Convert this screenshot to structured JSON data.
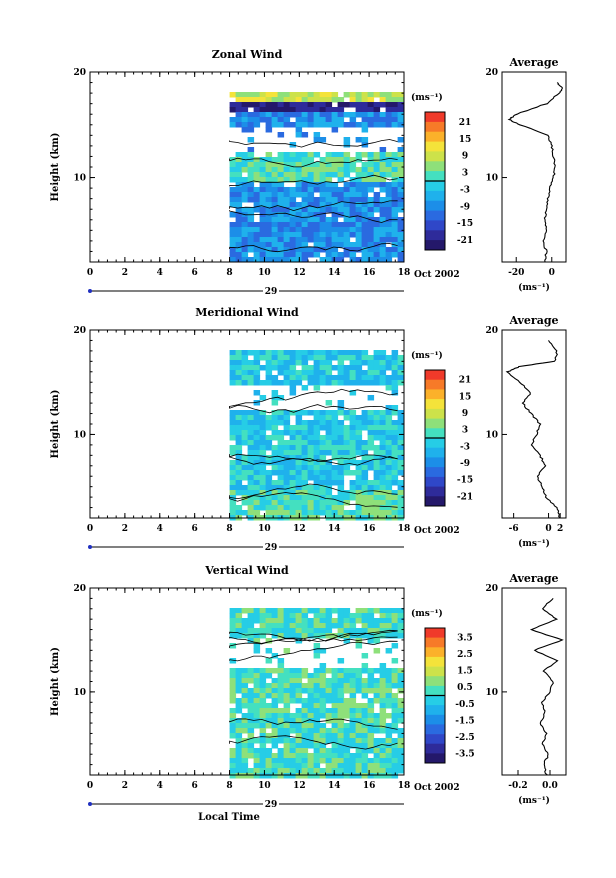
{
  "chart_data": [
    {
      "type": "heatmap",
      "title": "Zonal Wind",
      "xlabel": "",
      "ylabel": "Height (km)",
      "xlim": [
        0,
        18
      ],
      "ylim": [
        2,
        20
      ],
      "x_ticks": [
        0,
        2,
        4,
        6,
        8,
        10,
        12,
        14,
        16,
        18
      ],
      "y_ticks": [
        10,
        20
      ],
      "date_label": "29",
      "date_right": "Oct 2002",
      "data_start_time": 8,
      "colorbar": {
        "unit": "(ms⁻¹)",
        "ticks": [
          "21",
          "15",
          "9",
          "3",
          "-3",
          "-9",
          "-15",
          "-21"
        ],
        "range": [
          -24,
          24
        ]
      },
      "average": {
        "title": "Average",
        "xlabel": "(ms⁻¹)",
        "x_ticks": [
          "-20",
          "0"
        ],
        "xlim": [
          -28,
          8
        ],
        "y_ticks": [
          10,
          20
        ],
        "profile": [
          [
            2,
            -4
          ],
          [
            3,
            -3
          ],
          [
            4,
            -5
          ],
          [
            5,
            -3
          ],
          [
            6,
            -4
          ],
          [
            7,
            -3
          ],
          [
            8,
            -2
          ],
          [
            9,
            -1
          ],
          [
            10,
            1
          ],
          [
            11,
            2
          ],
          [
            12,
            1
          ],
          [
            13,
            0
          ],
          [
            14,
            -2
          ],
          [
            15,
            -18
          ],
          [
            15.5,
            -24
          ],
          [
            16,
            -20
          ],
          [
            17,
            -3
          ],
          [
            18,
            4
          ],
          [
            18.5,
            6
          ],
          [
            19,
            3
          ]
        ]
      }
    },
    {
      "type": "heatmap",
      "title": "Meridional Wind",
      "xlabel": "",
      "ylabel": "Height (km)",
      "xlim": [
        0,
        18
      ],
      "ylim": [
        2,
        20
      ],
      "x_ticks": [
        0,
        2,
        4,
        6,
        8,
        10,
        12,
        14,
        16,
        18
      ],
      "y_ticks": [
        10,
        20
      ],
      "date_label": "29",
      "date_right": "Oct 2002",
      "data_start_time": 8,
      "colorbar": {
        "unit": "(ms⁻¹)",
        "ticks": [
          "21",
          "15",
          "9",
          "3",
          "-3",
          "-9",
          "-15",
          "-21"
        ],
        "range": [
          -24,
          24
        ]
      },
      "average": {
        "title": "Average",
        "xlabel": "(ms⁻¹)",
        "x_ticks": [
          "-6",
          "0",
          "2"
        ],
        "xlim": [
          -8,
          3
        ],
        "y_ticks": [
          10,
          20
        ],
        "profile": [
          [
            2,
            2
          ],
          [
            3,
            1.5
          ],
          [
            4,
            -0.5
          ],
          [
            5,
            -1
          ],
          [
            6,
            -2
          ],
          [
            7,
            -0.5
          ],
          [
            8,
            -1.5
          ],
          [
            9,
            -3
          ],
          [
            10,
            -2
          ],
          [
            11,
            -1.5
          ],
          [
            12,
            -3
          ],
          [
            13,
            -4.5
          ],
          [
            14,
            -3
          ],
          [
            15,
            -5
          ],
          [
            16,
            -7
          ],
          [
            16.5,
            -5
          ],
          [
            17,
            1
          ],
          [
            18,
            1.5
          ],
          [
            19,
            0
          ]
        ]
      }
    },
    {
      "type": "heatmap",
      "title": "Vertical Wind",
      "xlabel": "Local Time",
      "ylabel": "Height (km)",
      "xlim": [
        0,
        18
      ],
      "ylim": [
        2,
        20
      ],
      "x_ticks": [
        0,
        2,
        4,
        6,
        8,
        10,
        12,
        14,
        16,
        18
      ],
      "y_ticks": [
        10,
        20
      ],
      "date_label": "29",
      "date_right": "Oct 2002",
      "data_start_time": 8,
      "colorbar": {
        "unit": "(ms⁻¹)",
        "ticks": [
          "3.5",
          "2.5",
          "1.5",
          "0.5",
          "-0.5",
          "-1.5",
          "-2.5",
          "-3.5"
        ],
        "range": [
          -4,
          4
        ]
      },
      "average": {
        "title": "Average",
        "xlabel": "(ms⁻¹)",
        "x_ticks": [
          "-0.2",
          "0.0"
        ],
        "xlim": [
          -0.3,
          0.1
        ],
        "y_ticks": [
          10,
          20
        ],
        "profile": [
          [
            2,
            -0.02
          ],
          [
            3,
            -0.04
          ],
          [
            4,
            -0.01
          ],
          [
            5,
            -0.05
          ],
          [
            6,
            -0.02
          ],
          [
            7,
            -0.06
          ],
          [
            8,
            -0.03
          ],
          [
            9,
            -0.05
          ],
          [
            10,
            0.0
          ],
          [
            11,
            0.02
          ],
          [
            12,
            -0.04
          ],
          [
            13,
            0.05
          ],
          [
            14,
            -0.1
          ],
          [
            15,
            0.08
          ],
          [
            16,
            -0.12
          ],
          [
            17,
            0.04
          ],
          [
            18,
            -0.05
          ],
          [
            19,
            0.02
          ]
        ]
      }
    }
  ]
}
